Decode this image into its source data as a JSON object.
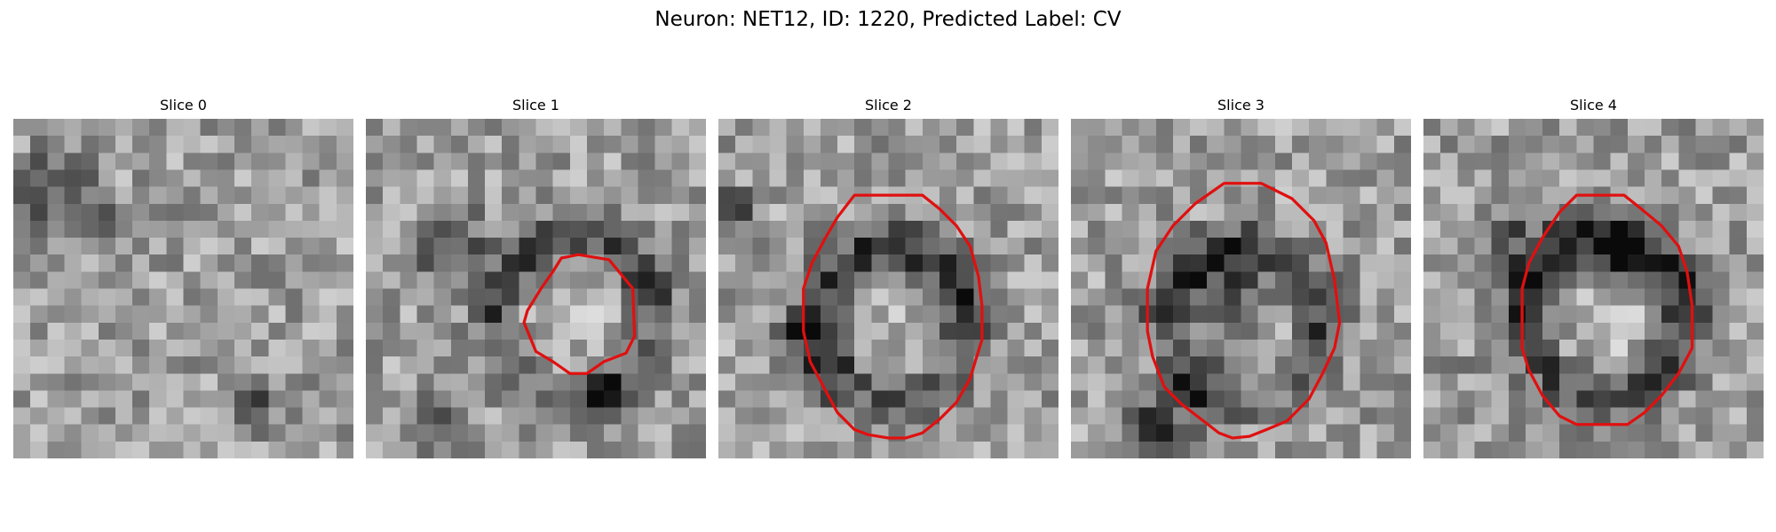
{
  "figure": {
    "title": "Neuron: NET12, ID: 1220, Predicted Label: CV"
  },
  "panels": [
    {
      "title": "Slice 0",
      "seed": 11,
      "darkness": 0.0,
      "outline": []
    },
    {
      "title": "Slice 1",
      "seed": 23,
      "darkness": 0.55,
      "outline": [
        [
          12.5,
          8.0
        ],
        [
          14.3,
          8.3
        ],
        [
          15.7,
          10.0
        ],
        [
          15.8,
          12.8
        ],
        [
          15.3,
          13.8
        ],
        [
          14.0,
          14.3
        ],
        [
          13.0,
          15.0
        ],
        [
          12.0,
          15.0
        ],
        [
          11.0,
          14.3
        ],
        [
          10.0,
          13.7
        ],
        [
          9.3,
          12.0
        ],
        [
          9.5,
          11.3
        ],
        [
          10.3,
          10.0
        ],
        [
          11.0,
          9.0
        ],
        [
          11.5,
          8.2
        ]
      ]
    },
    {
      "title": "Slice 2",
      "seed": 37,
      "darkness": 0.7,
      "outline": [
        [
          8.0,
          4.5
        ],
        [
          12.0,
          4.5
        ],
        [
          13.0,
          5.3
        ],
        [
          14.0,
          6.3
        ],
        [
          14.8,
          7.5
        ],
        [
          15.3,
          9.3
        ],
        [
          15.5,
          11.0
        ],
        [
          15.5,
          13.0
        ],
        [
          14.8,
          15.3
        ],
        [
          14.0,
          16.7
        ],
        [
          13.0,
          17.7
        ],
        [
          12.0,
          18.5
        ],
        [
          11.0,
          18.8
        ],
        [
          10.0,
          18.8
        ],
        [
          8.8,
          18.6
        ],
        [
          8.0,
          18.3
        ],
        [
          7.0,
          17.3
        ],
        [
          6.3,
          16.0
        ],
        [
          5.4,
          14.3
        ],
        [
          5.0,
          12.5
        ],
        [
          5.0,
          10.0
        ],
        [
          5.5,
          8.5
        ],
        [
          6.3,
          7.0
        ],
        [
          7.0,
          5.8
        ]
      ]
    },
    {
      "title": "Slice 3",
      "seed": 51,
      "darkness": 0.55,
      "outline": [
        [
          9.0,
          3.8
        ],
        [
          11.2,
          3.8
        ],
        [
          13.0,
          4.7
        ],
        [
          14.3,
          6.0
        ],
        [
          15.0,
          7.3
        ],
        [
          15.5,
          9.5
        ],
        [
          15.8,
          12.0
        ],
        [
          15.5,
          13.5
        ],
        [
          14.8,
          15.0
        ],
        [
          14.0,
          16.5
        ],
        [
          12.7,
          17.8
        ],
        [
          11.5,
          18.3
        ],
        [
          10.5,
          18.7
        ],
        [
          9.5,
          18.8
        ],
        [
          8.7,
          18.5
        ],
        [
          7.8,
          17.8
        ],
        [
          6.5,
          16.8
        ],
        [
          5.5,
          15.8
        ],
        [
          4.8,
          14.0
        ],
        [
          4.5,
          12.5
        ],
        [
          4.5,
          10.0
        ],
        [
          5.0,
          7.8
        ],
        [
          6.0,
          6.3
        ],
        [
          7.3,
          5.0
        ]
      ]
    },
    {
      "title": "Slice 4",
      "seed": 67,
      "darkness": 0.85,
      "outline": [
        [
          9.0,
          4.5
        ],
        [
          11.8,
          4.5
        ],
        [
          12.8,
          5.3
        ],
        [
          14.0,
          6.3
        ],
        [
          15.0,
          7.5
        ],
        [
          15.5,
          9.0
        ],
        [
          15.8,
          11.0
        ],
        [
          15.8,
          13.5
        ],
        [
          15.0,
          15.0
        ],
        [
          14.0,
          16.3
        ],
        [
          13.0,
          17.3
        ],
        [
          12.0,
          18.0
        ],
        [
          10.5,
          18.0
        ],
        [
          9.0,
          18.0
        ],
        [
          8.0,
          17.5
        ],
        [
          7.0,
          16.3
        ],
        [
          6.2,
          14.8
        ],
        [
          5.8,
          13.5
        ],
        [
          5.8,
          10.0
        ],
        [
          6.2,
          8.5
        ],
        [
          7.0,
          7.0
        ],
        [
          8.0,
          5.5
        ]
      ]
    }
  ]
}
